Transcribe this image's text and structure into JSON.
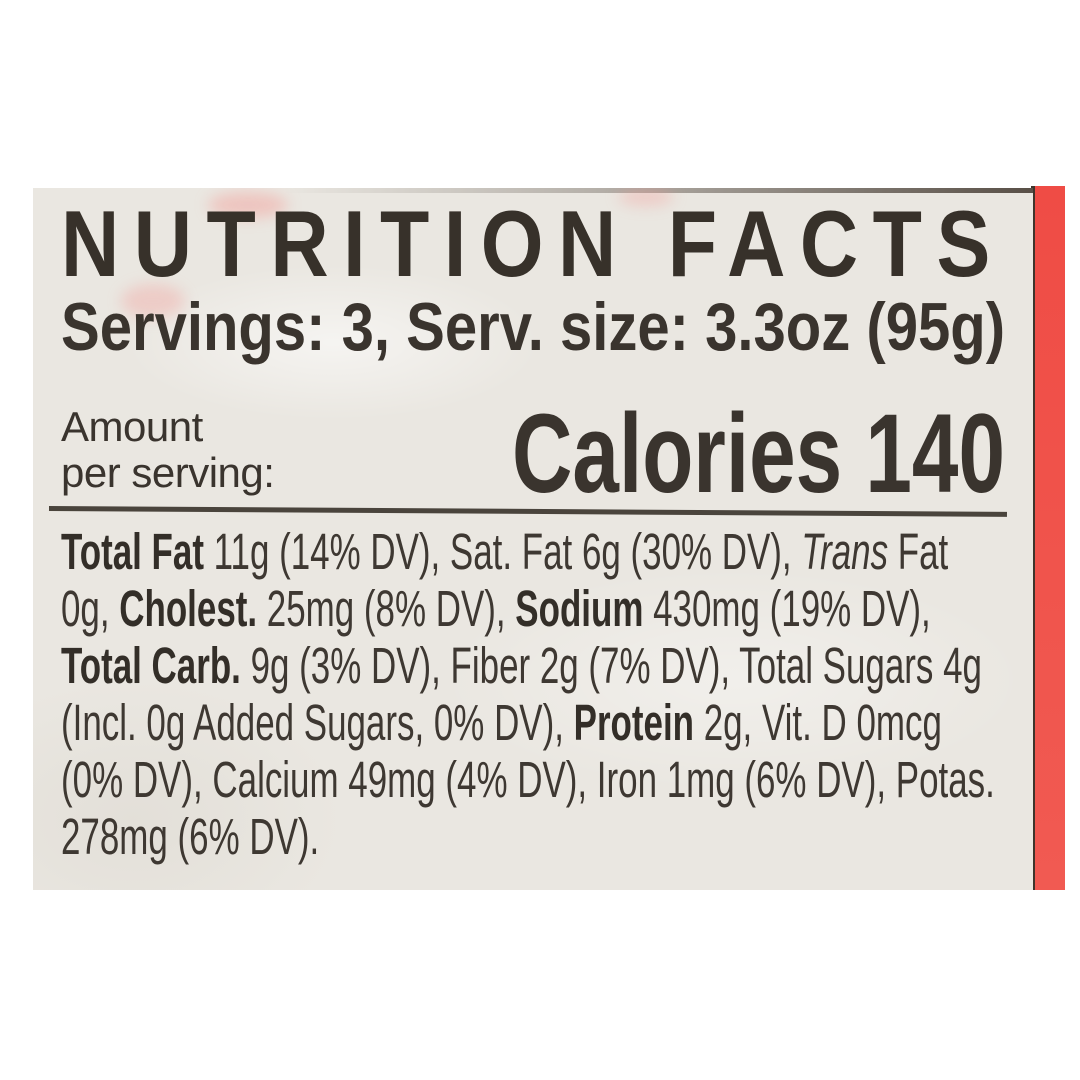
{
  "photo": {
    "background_color": "#ffffff"
  },
  "package": {
    "edge_color": "#ef4c45"
  },
  "label": {
    "background_color": "#eae7e1",
    "ink_color": "#3a342e",
    "rule_color": "#4a443c",
    "title": "NUTRITION FACTS",
    "servings_line": "Servings: 3, Serv. size: 3.3oz (95g)",
    "amount": {
      "line1": "Amount",
      "line2": "per serving:"
    },
    "calories": {
      "label": "Calories",
      "value": "140"
    },
    "nutrients": [
      {
        "text": "Total Fat",
        "bold": true
      },
      {
        "text": " 11g (14% DV), Sat. Fat 6g (30% DV), "
      },
      {
        "text": "Trans",
        "italic": true
      },
      {
        "text": " Fat 0g, "
      },
      {
        "text": "Cholest.",
        "bold": true
      },
      {
        "text": " 25mg (8% DV), "
      },
      {
        "text": "Sodium",
        "bold": true
      },
      {
        "text": " 430mg (19% DV), "
      },
      {
        "text": "Total Carb.",
        "bold": true
      },
      {
        "text": " 9g (3% DV), Fiber 2g (7% DV), Total Sugars 4g (Incl. 0g Added Sugars, 0% DV), "
      },
      {
        "text": "Protein",
        "bold": true
      },
      {
        "text": " 2g, Vit. D 0mcg (0% DV), Calcium 49mg (4% DV), Iron 1mg (6% DV), Potas. 278mg (6% DV)."
      }
    ]
  }
}
